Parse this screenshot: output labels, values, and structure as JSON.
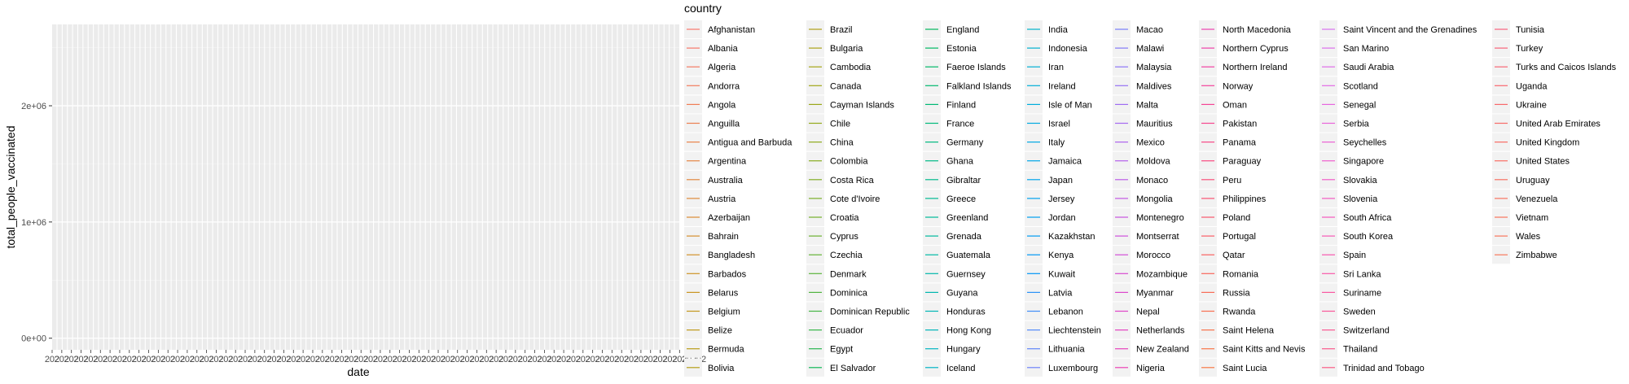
{
  "chart_data": {
    "type": "line",
    "xlabel": "date",
    "ylabel": "total_people_vaccinated",
    "y_ticks": [
      "0e+00",
      "1e+06",
      "2e+06"
    ],
    "y_tick_values": [
      0,
      1000000,
      2000000
    ],
    "ylim": [
      -100000,
      2700000
    ],
    "x_tick_labels_legible": false,
    "x_tick_label_prefix": "202",
    "grid": true,
    "legend_title": "country",
    "legend_position": "right",
    "series": [
      {
        "name": "Afghanistan",
        "color": "#F8766D"
      },
      {
        "name": "Albania",
        "color": "#F6776A"
      },
      {
        "name": "Algeria",
        "color": "#F47A63"
      },
      {
        "name": "Andorra",
        "color": "#F27C5D"
      },
      {
        "name": "Angola",
        "color": "#EF7E56"
      },
      {
        "name": "Anguilla",
        "color": "#EC8050"
      },
      {
        "name": "Antigua and Barbuda",
        "color": "#E9834A"
      },
      {
        "name": "Argentina",
        "color": "#E58544"
      },
      {
        "name": "Australia",
        "color": "#E2883E"
      },
      {
        "name": "Austria",
        "color": "#DE8A39"
      },
      {
        "name": "Azerbaijan",
        "color": "#DA8C34"
      },
      {
        "name": "Bahrain",
        "color": "#D68F2F"
      },
      {
        "name": "Bangladesh",
        "color": "#D2912A"
      },
      {
        "name": "Barbados",
        "color": "#CD9326"
      },
      {
        "name": "Belarus",
        "color": "#C99522",
        "_": ""
      },
      {
        "name": "Belgium",
        "color": "#C4981E"
      },
      {
        "name": "Belize",
        "color": "#BF9A1B"
      },
      {
        "name": "Bermuda",
        "color": "#BA9C19"
      },
      {
        "name": "Bolivia",
        "color": "#B59E17"
      },
      {
        "name": "Brazil",
        "color": "#B0A016"
      },
      {
        "name": "Bulgaria",
        "color": "#ABA215"
      },
      {
        "name": "Cambodia",
        "color": "#A5A415"
      },
      {
        "name": "Canada",
        "color": "#A0A516"
      },
      {
        "name": "Cayman Islands",
        "color": "#9AA718"
      },
      {
        "name": "Chile",
        "color": "#94A91A"
      },
      {
        "name": "China",
        "color": "#8EAA1D"
      },
      {
        "name": "Colombia",
        "color": "#88AC20"
      },
      {
        "name": "Costa Rica",
        "color": "#81AD24"
      },
      {
        "name": "Cote d'Ivoire",
        "color": "#7AAF28"
      },
      {
        "name": "Croatia",
        "color": "#73B02C"
      },
      {
        "name": "Cyprus",
        "color": "#6BB131"
      },
      {
        "name": "Czechia",
        "color": "#63B235"
      },
      {
        "name": "Denmark",
        "color": "#5AB33A"
      },
      {
        "name": "Dominica",
        "color": "#50B43F"
      },
      {
        "name": "Dominican Republic",
        "color": "#45B545"
      },
      {
        "name": "Ecuador",
        "color": "#38B64A"
      },
      {
        "name": "Egypt",
        "color": "#28B650"
      },
      {
        "name": "El Salvador",
        "color": "#0EB756"
      },
      {
        "name": "England",
        "color": "#00B75C"
      },
      {
        "name": "Estonia",
        "color": "#00B862"
      },
      {
        "name": "Faeroe Islands",
        "color": "#00B868"
      },
      {
        "name": "Falkland Islands",
        "color": "#00B86E"
      },
      {
        "name": "Finland",
        "color": "#00B974"
      },
      {
        "name": "France",
        "color": "#00B97A"
      },
      {
        "name": "Germany",
        "color": "#00B980"
      },
      {
        "name": "Ghana",
        "color": "#00B986"
      },
      {
        "name": "Gibraltar",
        "color": "#00B98C"
      },
      {
        "name": "Greece",
        "color": "#00B992"
      },
      {
        "name": "Greenland",
        "color": "#00B998"
      },
      {
        "name": "Grenada",
        "color": "#00B89E"
      },
      {
        "name": "Guatemala",
        "color": "#00B8A4"
      },
      {
        "name": "Guernsey",
        "color": "#00B7AA"
      },
      {
        "name": "Guyana",
        "color": "#00B7AF"
      },
      {
        "name": "Honduras",
        "color": "#00B6B5"
      },
      {
        "name": "Hong Kong",
        "color": "#00B5BA"
      },
      {
        "name": "Hungary",
        "color": "#00B4C0"
      },
      {
        "name": "Iceland",
        "color": "#00B3C5"
      },
      {
        "name": "India",
        "color": "#00B2CA"
      },
      {
        "name": "Indonesia",
        "color": "#00B1CF"
      },
      {
        "name": "Iran",
        "color": "#00AFD3"
      },
      {
        "name": "Ireland",
        "color": "#00AED8"
      },
      {
        "name": "Isle of Man",
        "color": "#00ACDC"
      },
      {
        "name": "Israel",
        "color": "#00AAE0"
      },
      {
        "name": "Italy",
        "color": "#00A8E4"
      },
      {
        "name": "Jamaica",
        "color": "#00A6E7"
      },
      {
        "name": "Japan",
        "color": "#00A4EA"
      },
      {
        "name": "Jersey",
        "color": "#00A1ED"
      },
      {
        "name": "Jordan",
        "color": "#009EF0"
      },
      {
        "name": "Kazakhstan",
        "color": "#009BF2"
      },
      {
        "name": "Kenya",
        "color": "#0098F4"
      },
      {
        "name": "Kuwait",
        "color": "#0095F6"
      },
      {
        "name": "Latvia",
        "color": "#2A92F7"
      },
      {
        "name": "Lebanon",
        "color": "#418EF8"
      },
      {
        "name": "Liechtenstein",
        "color": "#528AF9"
      },
      {
        "name": "Lithuania",
        "color": "#6086F9"
      },
      {
        "name": "Luxembourg",
        "color": "#6D82F9"
      },
      {
        "name": "Macao",
        "color": "#787DF8"
      },
      {
        "name": "Malawi",
        "color": "#8379F7"
      },
      {
        "name": "Malaysia",
        "color": "#8C75F6"
      },
      {
        "name": "Maldives",
        "color": "#9570F4"
      },
      {
        "name": "Malta",
        "color": "#9E6CF2"
      },
      {
        "name": "Mauritius",
        "color": "#A668F0"
      },
      {
        "name": "Mexico",
        "color": "#AD63ED"
      },
      {
        "name": "Moldova",
        "color": "#B45FEA"
      },
      {
        "name": "Monaco",
        "color": "#BB5BE7"
      },
      {
        "name": "Mongolia",
        "color": "#C157E3"
      },
      {
        "name": "Montenegro",
        "color": "#C754DF"
      },
      {
        "name": "Montserrat",
        "color": "#CD50DB"
      },
      {
        "name": "Morocco",
        "color": "#D24DD6"
      },
      {
        "name": "Mozambique",
        "color": "#D74AD1"
      },
      {
        "name": "Myanmar",
        "color": "#DB47CC"
      },
      {
        "name": "Nepal",
        "color": "#DF45C7"
      },
      {
        "name": "Netherlands",
        "color": "#E343C1"
      },
      {
        "name": "New Zealand",
        "color": "#E742BB"
      },
      {
        "name": "Nigeria",
        "color": "#EA41B5"
      },
      {
        "name": "North Macedonia",
        "color": "#EC41AF"
      },
      {
        "name": "Northern Cyprus",
        "color": "#EF41A9"
      },
      {
        "name": "Northern Ireland",
        "color": "#F141A2"
      },
      {
        "name": "Norway",
        "color": "#F3429C"
      },
      {
        "name": "Oman",
        "color": "#F54495"
      },
      {
        "name": "Pakistan",
        "color": "#F6468E"
      },
      {
        "name": "Panama",
        "color": "#F74988"
      },
      {
        "name": "Paraguay",
        "color": "#F84C81"
      },
      {
        "name": "Peru",
        "color": "#F9507A"
      },
      {
        "name": "Philippines",
        "color": "#F95473"
      },
      {
        "name": "Poland",
        "color": "#F9586C"
      },
      {
        "name": "Portugal",
        "color": "#F95D66"
      },
      {
        "name": "Qatar",
        "color": "#F96260"
      },
      {
        "name": "Romania",
        "color": "#F8665B"
      },
      {
        "name": "Russia",
        "color": "#F86B56"
      },
      {
        "name": "Rwanda",
        "color": "#F87051"
      },
      {
        "name": "Saint Helena",
        "color": "#F8734C"
      },
      {
        "name": "Saint Kitts and Nevis",
        "color": "#F87648"
      },
      {
        "name": "Saint Lucia",
        "color": "#F87744"
      },
      {
        "name": "Saint Vincent and the Grenadines",
        "color": "#D772F0"
      },
      {
        "name": "San Marino",
        "color": "#DB6FEC"
      },
      {
        "name": "Saudi Arabia",
        "color": "#DF6CE8"
      },
      {
        "name": "Scotland",
        "color": "#E369E4"
      },
      {
        "name": "Senegal",
        "color": "#E666DF"
      },
      {
        "name": "Serbia",
        "color": "#E963DA"
      },
      {
        "name": "Seychelles",
        "color": "#EC61D4"
      },
      {
        "name": "Singapore",
        "color": "#EF5FCE"
      },
      {
        "name": "Slovakia",
        "color": "#F15DC8"
      },
      {
        "name": "Slovenia",
        "color": "#F35BC2"
      },
      {
        "name": "South Africa",
        "color": "#F55ABC"
      },
      {
        "name": "South Korea",
        "color": "#F659B5"
      },
      {
        "name": "Spain",
        "color": "#F758AF"
      },
      {
        "name": "Sri Lanka",
        "color": "#F858A8"
      },
      {
        "name": "Suriname",
        "color": "#F958A1"
      },
      {
        "name": "Sweden",
        "color": "#FA589A"
      },
      {
        "name": "Switzerland",
        "color": "#FA5993"
      },
      {
        "name": "Thailand",
        "color": "#FA5A8C"
      },
      {
        "name": "Trinidad and Tobago",
        "color": "#FA5B85"
      },
      {
        "name": "Tunisia",
        "color": "#F8617E"
      },
      {
        "name": "Turkey",
        "color": "#F86379"
      },
      {
        "name": "Turks and Caicos Islands",
        "color": "#F86574"
      },
      {
        "name": "Uganda",
        "color": "#F8676F"
      },
      {
        "name": "Ukraine",
        "color": "#F8696B"
      },
      {
        "name": "United Arab Emirates",
        "color": "#F86B68"
      },
      {
        "name": "United Kingdom",
        "color": "#F86D65"
      },
      {
        "name": "United States",
        "color": "#F86F63"
      },
      {
        "name": "Uruguay",
        "color": "#F87161"
      },
      {
        "name": "Venezuela",
        "color": "#F8735F"
      },
      {
        "name": "Vietnam",
        "color": "#F8755D"
      },
      {
        "name": "Wales",
        "color": "#F8765C"
      },
      {
        "name": "Zimbabwe",
        "color": "#F8775B"
      }
    ]
  },
  "colors": {
    "panel_background": "#EBEBEB",
    "grid_major": "#FFFFFF",
    "grid_minor": "#F5F5F5",
    "legend_key_background": "#F2F2F2"
  }
}
